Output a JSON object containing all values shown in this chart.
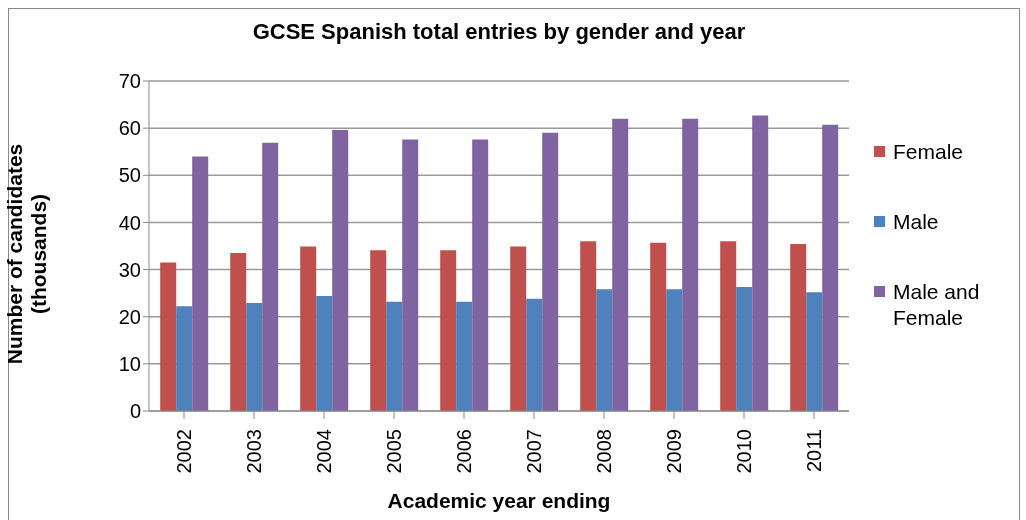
{
  "chart_data": {
    "type": "bar",
    "title": "GCSE Spanish total entries by gender and year",
    "xlabel": "Academic year ending",
    "ylabel": "Number of candidates (thousands)",
    "categories": [
      "2002",
      "2003",
      "2004",
      "2005",
      "2006",
      "2007",
      "2008",
      "2009",
      "2010",
      "2011"
    ],
    "series": [
      {
        "name": "Female",
        "color": "#c0504d",
        "values": [
          31.5,
          33.5,
          34.9,
          34.1,
          34.1,
          34.9,
          36.0,
          35.7,
          36.0,
          35.4
        ]
      },
      {
        "name": "Male",
        "color": "#4f81bd",
        "values": [
          22.2,
          22.9,
          24.4,
          23.2,
          23.2,
          23.8,
          25.8,
          25.8,
          26.3,
          25.2
        ]
      },
      {
        "name": "Male and Female",
        "color": "#8064a2",
        "values": [
          54.0,
          56.9,
          59.6,
          57.6,
          57.6,
          59.0,
          62.0,
          62.0,
          62.7,
          60.7
        ]
      }
    ],
    "ylim": [
      0,
      70
    ],
    "yticks": [
      0,
      10,
      20,
      30,
      40,
      50,
      60,
      70
    ],
    "grid": "y",
    "legend": "right"
  }
}
